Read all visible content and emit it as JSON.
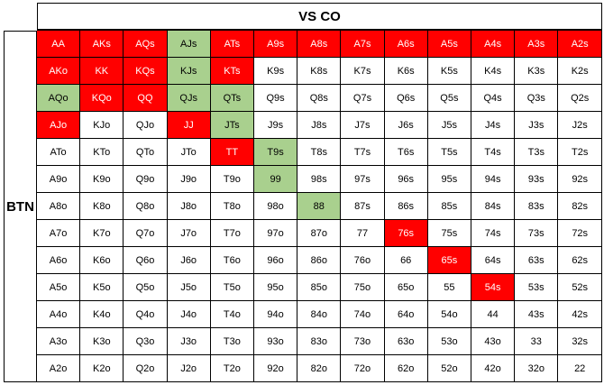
{
  "header": {
    "title": "VS CO"
  },
  "side": {
    "label": "BTN"
  },
  "colors": {
    "raise": "#ff0000",
    "call": "#a9d08e",
    "fold": "#ffffff"
  },
  "grid": {
    "rows": [
      [
        "AA",
        "AKs",
        "AQs",
        "AJs",
        "ATs",
        "A9s",
        "A8s",
        "A7s",
        "A6s",
        "A5s",
        "A4s",
        "A3s",
        "A2s"
      ],
      [
        "AKo",
        "KK",
        "KQs",
        "KJs",
        "KTs",
        "K9s",
        "K8s",
        "K7s",
        "K6s",
        "K5s",
        "K4s",
        "K3s",
        "K2s"
      ],
      [
        "AQo",
        "KQo",
        "QQ",
        "QJs",
        "QTs",
        "Q9s",
        "Q8s",
        "Q7s",
        "Q6s",
        "Q5s",
        "Q4s",
        "Q3s",
        "Q2s"
      ],
      [
        "AJo",
        "KJo",
        "QJo",
        "JJ",
        "JTs",
        "J9s",
        "J8s",
        "J7s",
        "J6s",
        "J5s",
        "J4s",
        "J3s",
        "J2s"
      ],
      [
        "ATo",
        "KTo",
        "QTo",
        "JTo",
        "TT",
        "T9s",
        "T8s",
        "T7s",
        "T6s",
        "T5s",
        "T4s",
        "T3s",
        "T2s"
      ],
      [
        "A9o",
        "K9o",
        "Q9o",
        "J9o",
        "T9o",
        "99",
        "98s",
        "97s",
        "96s",
        "95s",
        "94s",
        "93s",
        "92s"
      ],
      [
        "A8o",
        "K8o",
        "Q8o",
        "J8o",
        "T8o",
        "98o",
        "88",
        "87s",
        "86s",
        "85s",
        "84s",
        "83s",
        "82s"
      ],
      [
        "A7o",
        "K7o",
        "Q7o",
        "J7o",
        "T7o",
        "97o",
        "87o",
        "77",
        "76s",
        "75s",
        "74s",
        "73s",
        "72s"
      ],
      [
        "A6o",
        "K6o",
        "Q6o",
        "J6o",
        "T6o",
        "96o",
        "86o",
        "76o",
        "66",
        "65s",
        "64s",
        "63s",
        "62s"
      ],
      [
        "A5o",
        "K5o",
        "Q5o",
        "J5o",
        "T5o",
        "95o",
        "85o",
        "75o",
        "65o",
        "55",
        "54s",
        "53s",
        "52s"
      ],
      [
        "A4o",
        "K4o",
        "Q4o",
        "J4o",
        "T4o",
        "94o",
        "84o",
        "74o",
        "64o",
        "54o",
        "44",
        "43s",
        "42s"
      ],
      [
        "A3o",
        "K3o",
        "Q3o",
        "J3o",
        "T3o",
        "93o",
        "83o",
        "73o",
        "63o",
        "53o",
        "43o",
        "33",
        "32s"
      ],
      [
        "A2o",
        "K2o",
        "Q2o",
        "J2o",
        "T2o",
        "92o",
        "82o",
        "72o",
        "62o",
        "52o",
        "42o",
        "32o",
        "22"
      ]
    ],
    "actions": [
      [
        "raise",
        "raise",
        "raise",
        "call",
        "raise",
        "raise",
        "raise",
        "raise",
        "raise",
        "raise",
        "raise",
        "raise",
        "raise"
      ],
      [
        "raise",
        "raise",
        "raise",
        "call",
        "raise",
        "fold",
        "fold",
        "fold",
        "fold",
        "fold",
        "fold",
        "fold",
        "fold"
      ],
      [
        "call",
        "raise",
        "raise",
        "call",
        "call",
        "fold",
        "fold",
        "fold",
        "fold",
        "fold",
        "fold",
        "fold",
        "fold"
      ],
      [
        "raise",
        "fold",
        "fold",
        "raise",
        "call",
        "fold",
        "fold",
        "fold",
        "fold",
        "fold",
        "fold",
        "fold",
        "fold"
      ],
      [
        "fold",
        "fold",
        "fold",
        "fold",
        "raise",
        "call",
        "fold",
        "fold",
        "fold",
        "fold",
        "fold",
        "fold",
        "fold"
      ],
      [
        "fold",
        "fold",
        "fold",
        "fold",
        "fold",
        "call",
        "fold",
        "fold",
        "fold",
        "fold",
        "fold",
        "fold",
        "fold"
      ],
      [
        "fold",
        "fold",
        "fold",
        "fold",
        "fold",
        "fold",
        "call",
        "fold",
        "fold",
        "fold",
        "fold",
        "fold",
        "fold"
      ],
      [
        "fold",
        "fold",
        "fold",
        "fold",
        "fold",
        "fold",
        "fold",
        "fold",
        "raise",
        "fold",
        "fold",
        "fold",
        "fold"
      ],
      [
        "fold",
        "fold",
        "fold",
        "fold",
        "fold",
        "fold",
        "fold",
        "fold",
        "fold",
        "raise",
        "fold",
        "fold",
        "fold"
      ],
      [
        "fold",
        "fold",
        "fold",
        "fold",
        "fold",
        "fold",
        "fold",
        "fold",
        "fold",
        "fold",
        "raise",
        "fold",
        "fold"
      ],
      [
        "fold",
        "fold",
        "fold",
        "fold",
        "fold",
        "fold",
        "fold",
        "fold",
        "fold",
        "fold",
        "fold",
        "fold",
        "fold"
      ],
      [
        "fold",
        "fold",
        "fold",
        "fold",
        "fold",
        "fold",
        "fold",
        "fold",
        "fold",
        "fold",
        "fold",
        "fold",
        "fold"
      ],
      [
        "fold",
        "fold",
        "fold",
        "fold",
        "fold",
        "fold",
        "fold",
        "fold",
        "fold",
        "fold",
        "fold",
        "fold",
        "fold"
      ]
    ]
  }
}
